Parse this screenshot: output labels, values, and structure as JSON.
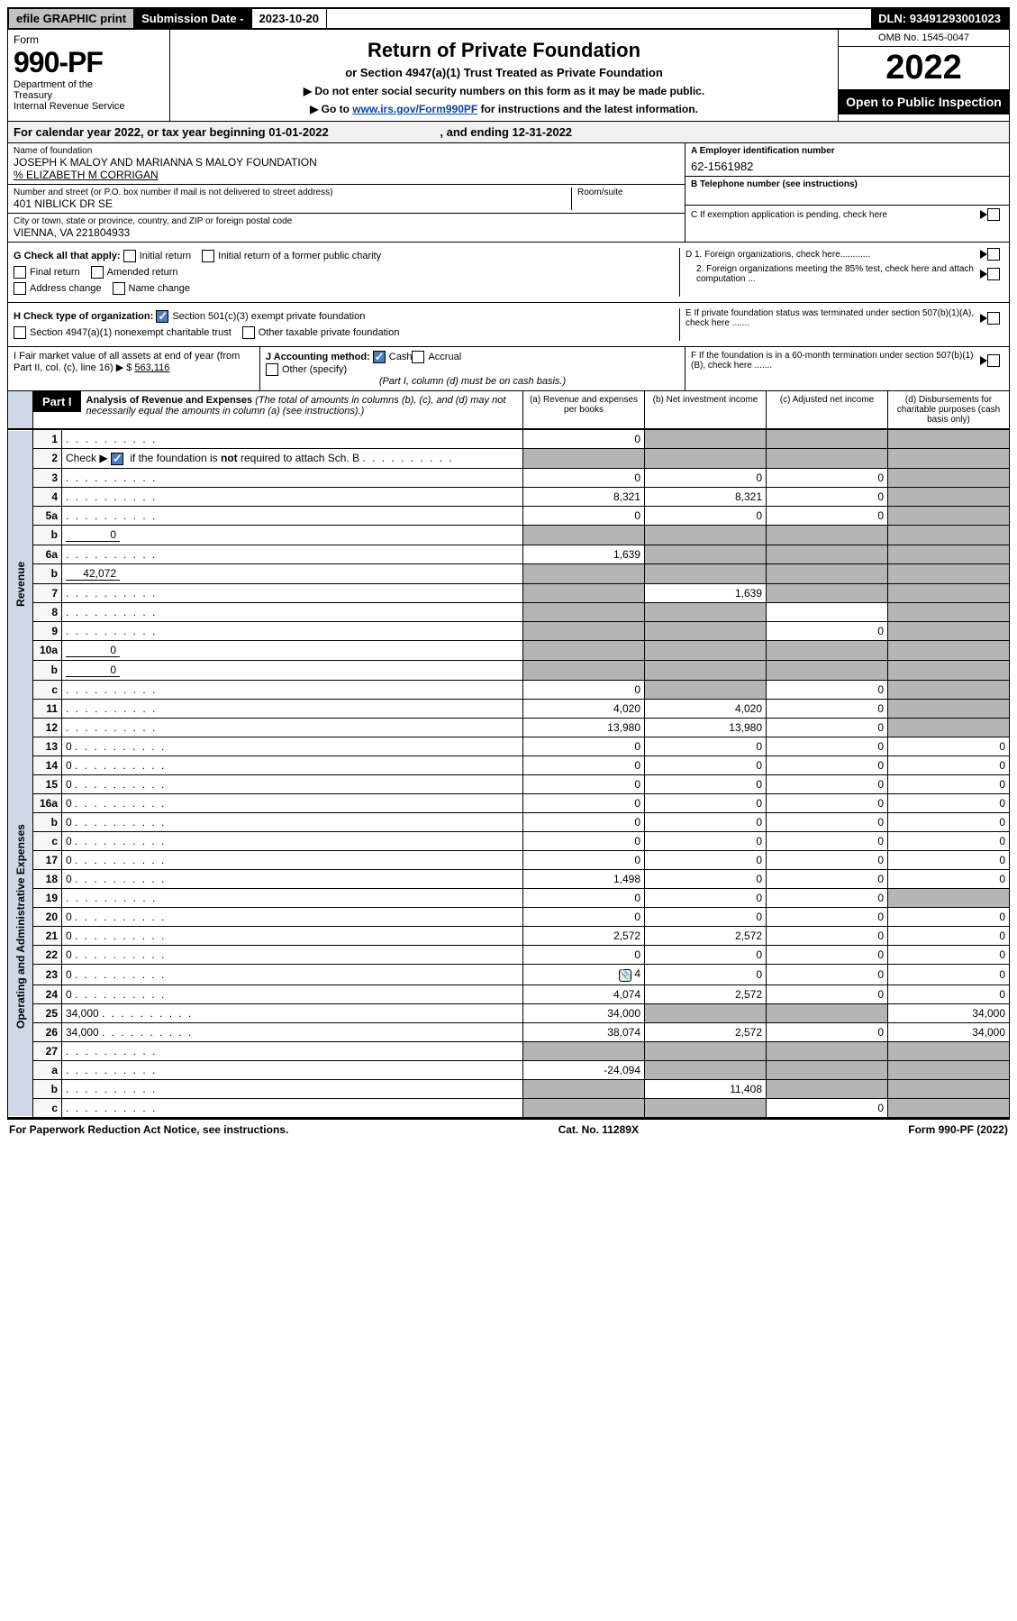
{
  "topbar": {
    "efile": "efile GRAPHIC print",
    "subm_label": "Submission Date - ",
    "subm_date": "2023-10-20",
    "dln_label": "DLN: ",
    "dln": "93491293001023"
  },
  "header": {
    "form_label": "Form",
    "form_number": "990-PF",
    "dept": "Department of the Treasury\nInternal Revenue Service",
    "title": "Return of Private Foundation",
    "subtitle": "or Section 4947(a)(1) Trust Treated as Private Foundation",
    "note1": "▶ Do not enter social security numbers on this form as it may be made public.",
    "note2_pre": "▶ Go to ",
    "note2_link": "www.irs.gov/Form990PF",
    "note2_post": " for instructions and the latest information.",
    "omb": "OMB No. 1545-0047",
    "taxyear": "2022",
    "open": "Open to Public Inspection"
  },
  "calendar": {
    "text_pre": "For calendar year 2022, or tax year beginning ",
    "begin": "01-01-2022",
    "text_mid": " , and ending ",
    "end": "12-31-2022"
  },
  "entity": {
    "name_label": "Name of foundation",
    "name": "JOSEPH K MALOY AND MARIANNA S MALOY FOUNDATION",
    "care_of": "% ELIZABETH M CORRIGAN",
    "addr_label": "Number and street (or P.O. box number if mail is not delivered to street address)",
    "addr": "401 NIBLICK DR SE",
    "room_label": "Room/suite",
    "city_label": "City or town, state or province, country, and ZIP or foreign postal code",
    "city": "VIENNA, VA  221804933",
    "A_label": "A Employer identification number",
    "A_val": "62-1561982",
    "B_label": "B Telephone number (see instructions)",
    "C_label": "C If exemption application is pending, check here",
    "D1": "D 1. Foreign organizations, check here............",
    "D2": "2. Foreign organizations meeting the 85% test, check here and attach computation ...",
    "E": "E  If private foundation status was terminated under section 507(b)(1)(A), check here .......",
    "F": "F  If the foundation is in a 60-month termination under section 507(b)(1)(B), check here .......",
    "G_label": "G Check all that apply:",
    "G_opts": [
      "Initial return",
      "Initial return of a former public charity",
      "Final return",
      "Amended return",
      "Address change",
      "Name change"
    ],
    "H_label": "H Check type of organization:",
    "H_opts": [
      "Section 501(c)(3) exempt private foundation",
      "Section 4947(a)(1) nonexempt charitable trust",
      "Other taxable private foundation"
    ],
    "H_checked": 0,
    "I_label": "I Fair market value of all assets at end of year (from Part II, col. (c), line 16) ▶ $",
    "I_val": "563,116",
    "J_label": "J Accounting method:",
    "J_opts": [
      "Cash",
      "Accrual",
      "Other (specify)"
    ],
    "J_checked": 0,
    "J_note": "(Part I, column (d) must be on cash basis.)"
  },
  "part1": {
    "label": "Part I",
    "title": "Analysis of Revenue and Expenses",
    "title_note": "(The total of amounts in columns (b), (c), and (d) may not necessarily equal the amounts in column (a) (see instructions).)",
    "cols": {
      "a": "(a) Revenue and expenses per books",
      "b": "(b) Net investment income",
      "c": "(c) Adjusted net income",
      "d": "(d) Disbursements for charitable purposes (cash basis only)"
    },
    "section_labels": {
      "rev": "Revenue",
      "opex": "Operating and Administrative Expenses"
    },
    "rows": [
      {
        "n": "1",
        "d": "",
        "a": "0",
        "b": "",
        "c": "",
        "shade": [
          "b",
          "c",
          "d"
        ]
      },
      {
        "n": "2",
        "d": "",
        "a": "",
        "b": "",
        "c": "",
        "shade": [
          "a",
          "b",
          "c",
          "d"
        ],
        "checked": true
      },
      {
        "n": "3",
        "d": "",
        "a": "0",
        "b": "0",
        "c": "0",
        "shade": [
          "d"
        ]
      },
      {
        "n": "4",
        "d": "",
        "a": "8,321",
        "b": "8,321",
        "c": "0",
        "shade": [
          "d"
        ]
      },
      {
        "n": "5a",
        "d": "",
        "a": "0",
        "b": "0",
        "c": "0",
        "shade": [
          "d"
        ]
      },
      {
        "n": "b",
        "d": "",
        "a": "",
        "b": "",
        "c": "",
        "inline": "0",
        "shade": [
          "a",
          "b",
          "c",
          "d"
        ]
      },
      {
        "n": "6a",
        "d": "",
        "a": "1,639",
        "b": "",
        "c": "",
        "shade": [
          "b",
          "c",
          "d"
        ]
      },
      {
        "n": "b",
        "d": "",
        "a": "",
        "b": "",
        "c": "",
        "inline": "42,072",
        "shade": [
          "a",
          "b",
          "c",
          "d"
        ]
      },
      {
        "n": "7",
        "d": "",
        "a": "",
        "b": "1,639",
        "c": "",
        "shade": [
          "a",
          "c",
          "d"
        ]
      },
      {
        "n": "8",
        "d": "",
        "a": "",
        "b": "",
        "c": "",
        "shade": [
          "a",
          "b",
          "d"
        ]
      },
      {
        "n": "9",
        "d": "",
        "a": "",
        "b": "",
        "c": "0",
        "shade": [
          "a",
          "b",
          "d"
        ]
      },
      {
        "n": "10a",
        "d": "",
        "a": "",
        "b": "",
        "c": "",
        "inline": "0",
        "shade": [
          "a",
          "b",
          "c",
          "d"
        ]
      },
      {
        "n": "b",
        "d": "",
        "a": "",
        "b": "",
        "c": "",
        "inline": "0",
        "shade": [
          "a",
          "b",
          "c",
          "d"
        ]
      },
      {
        "n": "c",
        "d": "",
        "a": "0",
        "b": "",
        "c": "0",
        "shade": [
          "b",
          "d"
        ]
      },
      {
        "n": "11",
        "d": "",
        "a": "4,020",
        "b": "4,020",
        "c": "0",
        "shade": [
          "d"
        ]
      },
      {
        "n": "12",
        "d": "",
        "a": "13,980",
        "b": "13,980",
        "c": "0",
        "shade": [
          "d"
        ],
        "bold": true
      }
    ],
    "opex_rows": [
      {
        "n": "13",
        "d": "0",
        "a": "0",
        "b": "0",
        "c": "0"
      },
      {
        "n": "14",
        "d": "0",
        "a": "0",
        "b": "0",
        "c": "0"
      },
      {
        "n": "15",
        "d": "0",
        "a": "0",
        "b": "0",
        "c": "0"
      },
      {
        "n": "16a",
        "d": "0",
        "a": "0",
        "b": "0",
        "c": "0"
      },
      {
        "n": "b",
        "d": "0",
        "a": "0",
        "b": "0",
        "c": "0"
      },
      {
        "n": "c",
        "d": "0",
        "a": "0",
        "b": "0",
        "c": "0"
      },
      {
        "n": "17",
        "d": "0",
        "a": "0",
        "b": "0",
        "c": "0"
      },
      {
        "n": "18",
        "d": "0",
        "a": "1,498",
        "b": "0",
        "c": "0"
      },
      {
        "n": "19",
        "d": "",
        "a": "0",
        "b": "0",
        "c": "0",
        "shade": [
          "d"
        ]
      },
      {
        "n": "20",
        "d": "0",
        "a": "0",
        "b": "0",
        "c": "0"
      },
      {
        "n": "21",
        "d": "0",
        "a": "2,572",
        "b": "2,572",
        "c": "0"
      },
      {
        "n": "22",
        "d": "0",
        "a": "0",
        "b": "0",
        "c": "0"
      },
      {
        "n": "23",
        "d": "0",
        "a": "4",
        "b": "0",
        "c": "0",
        "icon": true
      },
      {
        "n": "24",
        "d": "0",
        "a": "4,074",
        "b": "2,572",
        "c": "0"
      },
      {
        "n": "25",
        "d": "34,000",
        "a": "34,000",
        "b": "",
        "c": "",
        "shade": [
          "b",
          "c"
        ]
      },
      {
        "n": "26",
        "d": "34,000",
        "a": "38,074",
        "b": "2,572",
        "c": "0"
      },
      {
        "n": "27",
        "d": "",
        "a": "",
        "b": "",
        "c": "",
        "shade": [
          "a",
          "b",
          "c",
          "d"
        ]
      },
      {
        "n": "a",
        "d": "",
        "a": "-24,094",
        "b": "",
        "c": "",
        "shade": [
          "b",
          "c",
          "d"
        ]
      },
      {
        "n": "b",
        "d": "",
        "a": "",
        "b": "11,408",
        "c": "",
        "shade": [
          "a",
          "c",
          "d"
        ]
      },
      {
        "n": "c",
        "d": "",
        "a": "",
        "b": "",
        "c": "0",
        "shade": [
          "a",
          "b",
          "d"
        ]
      }
    ]
  },
  "footer": {
    "left": "For Paperwork Reduction Act Notice, see instructions.",
    "mid": "Cat. No. 11289X",
    "right": "Form 990-PF (2022)"
  },
  "colors": {
    "shade": "#b5b5b5",
    "vert": "#d0d8e8",
    "link": "#0645ad",
    "check": "#4a7bc4"
  }
}
